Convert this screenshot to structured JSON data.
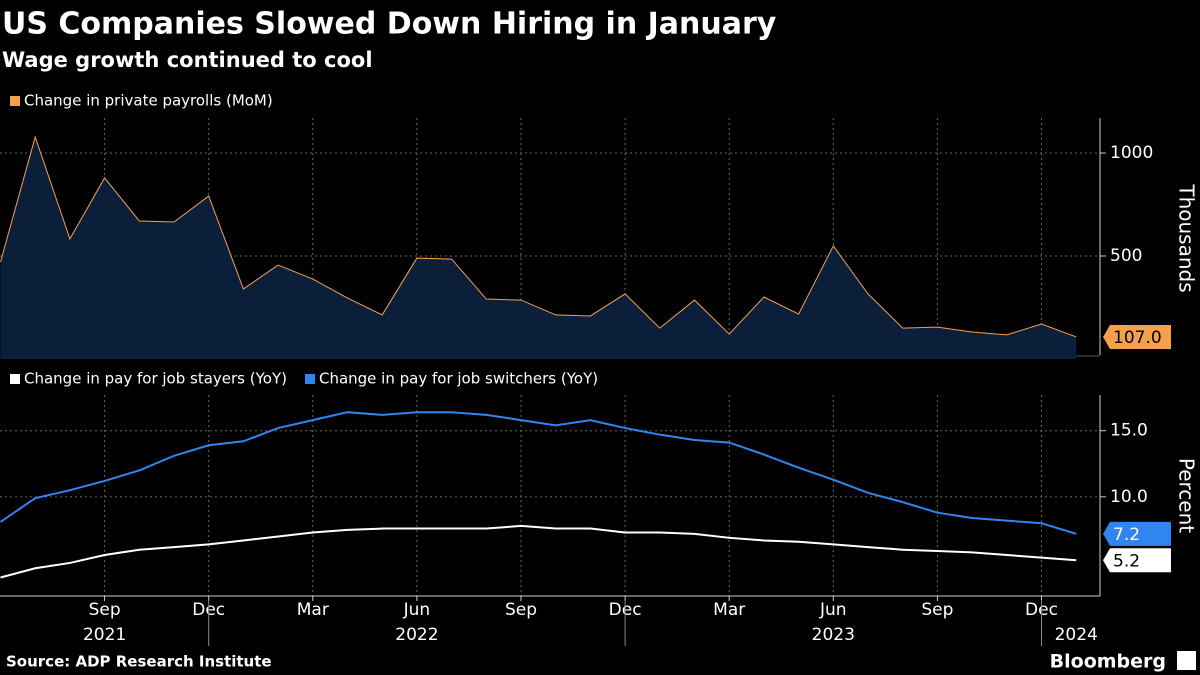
{
  "title": "US Companies Slowed Down Hiring in January",
  "subtitle": "Wage growth continued to cool",
  "source": "Source: ADP Research Institute",
  "brand": "Bloomberg",
  "chart_data": [
    {
      "type": "area",
      "x": [
        "2021-06",
        "2021-07",
        "2021-08",
        "2021-09",
        "2021-10",
        "2021-11",
        "2021-12",
        "2022-01",
        "2022-02",
        "2022-03",
        "2022-04",
        "2022-05",
        "2022-06",
        "2022-07",
        "2022-08",
        "2022-09",
        "2022-10",
        "2022-11",
        "2022-12",
        "2023-01",
        "2023-02",
        "2023-03",
        "2023-04",
        "2023-05",
        "2023-06",
        "2023-07",
        "2023-08",
        "2023-09",
        "2023-10",
        "2023-11",
        "2023-12",
        "2024-01"
      ],
      "series": [
        {
          "name": "Change in private payrolls (MoM)",
          "color": "#f5a04a",
          "fill": "#0b1f3a",
          "values": [
            471,
            1078,
            583,
            879,
            670,
            665,
            791,
            340,
            456,
            388,
            296,
            214,
            490,
            485,
            291,
            286,
            214,
            209,
            316,
            150,
            286,
            121,
            301,
            218,
            549,
            316,
            150,
            155,
            131,
            117,
            170,
            107
          ],
          "last_value_label": "107.0"
        }
      ],
      "ylim": [
        0,
        1170
      ],
      "yticks": [
        500,
        1000
      ],
      "ylabel": "Thousands",
      "grid": true
    },
    {
      "type": "line",
      "x": [
        "2021-06",
        "2021-07",
        "2021-08",
        "2021-09",
        "2021-10",
        "2021-11",
        "2021-12",
        "2022-01",
        "2022-02",
        "2022-03",
        "2022-04",
        "2022-05",
        "2022-06",
        "2022-07",
        "2022-08",
        "2022-09",
        "2022-10",
        "2022-11",
        "2022-12",
        "2023-01",
        "2023-02",
        "2023-03",
        "2023-04",
        "2023-05",
        "2023-06",
        "2023-07",
        "2023-08",
        "2023-09",
        "2023-10",
        "2023-11",
        "2023-12",
        "2024-01"
      ],
      "series": [
        {
          "name": "Change in pay for job stayers (YoY)",
          "color": "#ffffff",
          "text_color": "#000000",
          "values": [
            3.9,
            4.6,
            5.0,
            5.6,
            6.0,
            6.2,
            6.4,
            6.7,
            7.0,
            7.3,
            7.5,
            7.6,
            7.6,
            7.6,
            7.6,
            7.8,
            7.6,
            7.6,
            7.3,
            7.3,
            7.2,
            6.9,
            6.7,
            6.6,
            6.4,
            6.2,
            6.0,
            5.9,
            5.8,
            5.6,
            5.4,
            5.2
          ],
          "last_value_label": "5.2"
        },
        {
          "name": "Change in pay for job switchers (YoY)",
          "color": "#2f86f0",
          "text_color": "#ffffff",
          "values": [
            8.1,
            9.9,
            10.5,
            11.2,
            12.0,
            13.1,
            13.9,
            14.2,
            15.2,
            15.8,
            16.4,
            16.2,
            16.4,
            16.4,
            16.2,
            15.8,
            15.4,
            15.8,
            15.2,
            14.7,
            14.3,
            14.1,
            13.2,
            12.2,
            11.3,
            10.3,
            9.6,
            8.8,
            8.4,
            8.2,
            8.0,
            7.2
          ],
          "last_value_label": "7.2"
        }
      ],
      "ylim": [
        2.5,
        17.7
      ],
      "yticks": [
        {
          "value": 10,
          "label": "10.0"
        },
        {
          "value": 15,
          "label": "15.0"
        }
      ],
      "ylabel": "Percent",
      "grid": true,
      "xticks": [
        {
          "value": "2021-09",
          "label": "Sep"
        },
        {
          "value": "2021-12",
          "label": "Dec"
        },
        {
          "value": "2022-03",
          "label": "Mar"
        },
        {
          "value": "2022-06",
          "label": "Jun"
        },
        {
          "value": "2022-09",
          "label": "Sep"
        },
        {
          "value": "2022-12",
          "label": "Dec"
        },
        {
          "value": "2023-03",
          "label": "Mar"
        },
        {
          "value": "2023-06",
          "label": "Jun"
        },
        {
          "value": "2023-09",
          "label": "Sep"
        },
        {
          "value": "2023-12",
          "label": "Dec"
        }
      ],
      "year_labels": [
        {
          "value": "2021-09",
          "label": "2021"
        },
        {
          "value": "2022-06",
          "label": "2022"
        },
        {
          "value": "2023-06",
          "label": "2023"
        },
        {
          "value": "2024-01",
          "label": "2024"
        }
      ]
    }
  ]
}
